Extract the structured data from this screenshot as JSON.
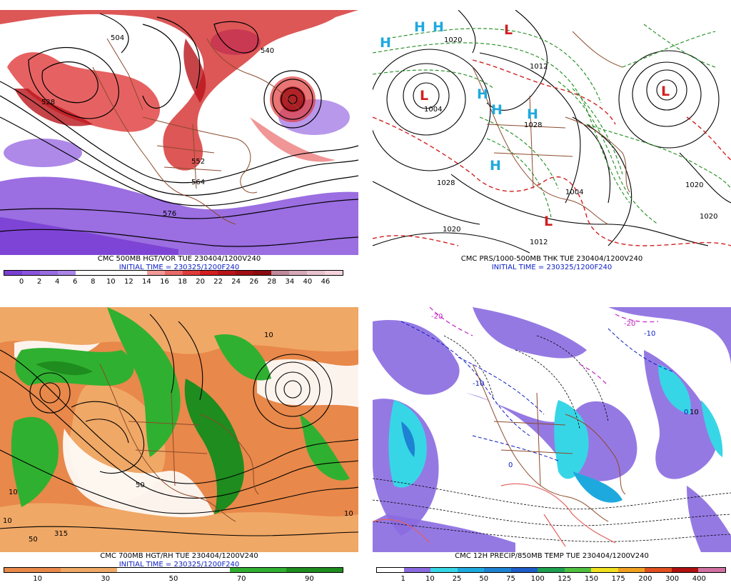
{
  "panels": [
    {
      "id": "p1",
      "caption": "CMC 500MB HGT/VOR TUE 230404/1200V240",
      "initial_time": "INITIAL TIME = 230325/1200F240",
      "legend_colors": [
        "#7b3fd4",
        "#8a55dc",
        "#9a6ce2",
        "#ab86e8",
        "#ffffff",
        "#ffffff",
        "#ffffff",
        "#ffffff",
        "#f29a9a",
        "#ea6a6a",
        "#e03b3b",
        "#d21f1f",
        "#b8141a",
        "#a00e14",
        "#8a0b10",
        "#c08a9c",
        "#d6a8b8",
        "#e8c2cf",
        "#f4d4dc"
      ],
      "legend_ticks": [
        "0",
        "2",
        "4",
        "6",
        "8",
        "10",
        "12",
        "14",
        "16",
        "18",
        "20",
        "22",
        "24",
        "26",
        "28",
        "34",
        "40",
        "46"
      ],
      "map_labels": [
        "504",
        "528",
        "540",
        "576",
        "564",
        "552"
      ]
    },
    {
      "id": "p2",
      "caption": "CMC PRS/1000-500MB THK TUE 230404/1200V240",
      "initial_time": "INITIAL TIME = 230325/1200F240",
      "map_labels": [
        "1020",
        "1012",
        "1004",
        "1028",
        "1020",
        "1012",
        "1004",
        "1028",
        "1020",
        "1020"
      ],
      "centers": [
        "H",
        "H",
        "H",
        "H",
        "H",
        "H",
        "H",
        "L",
        "L",
        "L",
        "L"
      ]
    },
    {
      "id": "p3",
      "caption": "CMC 700MB HGT/RH TUE 230404/1200V240",
      "initial_time": "INITIAL TIME = 230325/1200F240",
      "legend_colors": [
        "#e8884a",
        "#e8884a",
        "#e8884a",
        "#f0a866",
        "#f0a866",
        "#f0a866",
        "#ffffff",
        "#ffffff",
        "#ffffff",
        "#ffffff",
        "#ffffff",
        "#ffffff",
        "#30b030",
        "#30b030",
        "#30b030",
        "#1e8c1e",
        "#1e8c1e",
        "#1e8c1e"
      ],
      "legend_ticks": [
        "10",
        "30",
        "50",
        "70",
        "90"
      ],
      "map_labels": [
        "315",
        "50",
        "10",
        "10",
        "50",
        "10",
        "10"
      ]
    },
    {
      "id": "p4",
      "caption": "CMC 12H PRECIP/850MB TEMP TUE 230404/1200V240",
      "legend_colors": [
        "#ffffff",
        "#8a6ae0",
        "#37d6e6",
        "#1ea9de",
        "#1e82d2",
        "#1e5cc8",
        "#1ea050",
        "#50c040",
        "#f0e020",
        "#f0a020",
        "#e05020",
        "#b01010",
        "#d070a0"
      ],
      "legend_ticks": [
        "1",
        "10",
        "25",
        "50",
        "75",
        "100",
        "125",
        "150",
        "175",
        "200",
        "300",
        "400"
      ],
      "map_labels": [
        "-20",
        "-20",
        "0",
        "-10",
        "0",
        "10",
        "-10"
      ]
    }
  ]
}
